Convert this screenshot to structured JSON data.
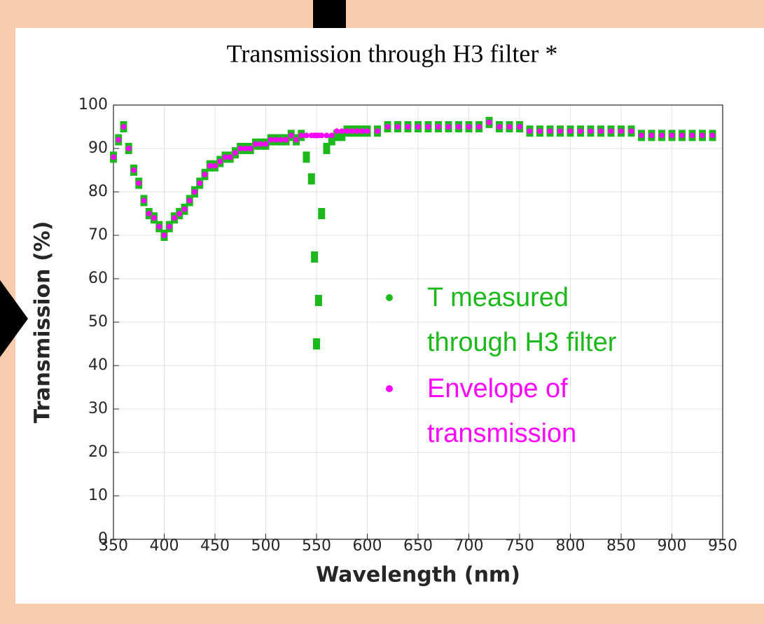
{
  "chart_data": {
    "type": "scatter",
    "title": "Transmission through H3 filter *",
    "x_label": "Wavelength (nm)",
    "y_label": "Transmission (%)",
    "x": [
      350,
      355,
      360,
      365,
      370,
      375,
      380,
      385,
      390,
      395,
      400,
      405,
      410,
      415,
      420,
      425,
      430,
      435,
      440,
      445,
      450,
      455,
      460,
      465,
      470,
      475,
      480,
      485,
      490,
      495,
      500,
      505,
      510,
      515,
      520,
      525,
      530,
      535,
      540,
      545,
      548,
      550,
      552,
      555,
      560,
      565,
      570,
      575,
      580,
      585,
      590,
      595,
      600,
      610,
      620,
      630,
      640,
      650,
      660,
      670,
      680,
      690,
      700,
      710,
      720,
      730,
      740,
      750,
      760,
      770,
      780,
      790,
      800,
      810,
      820,
      830,
      840,
      850,
      860,
      870,
      880,
      890,
      900,
      910,
      920,
      930,
      940
    ],
    "series": [
      {
        "name": "T measured\nthrough H3 filter",
        "color": "#1cb81c",
        "values": [
          88,
          92,
          95,
          90,
          85,
          82,
          78,
          75,
          74,
          72,
          70,
          72,
          74,
          75,
          76,
          78,
          80,
          82,
          84,
          86,
          86,
          87,
          88,
          88,
          89,
          90,
          90,
          90,
          91,
          91,
          91,
          92,
          92,
          92,
          92,
          93,
          92,
          93,
          88,
          83,
          65,
          45,
          55,
          75,
          90,
          92,
          93,
          93,
          94,
          94,
          94,
          94,
          94,
          94,
          95,
          95,
          95,
          95,
          95,
          95,
          95,
          95,
          95,
          95,
          96,
          95,
          95,
          95,
          94,
          94,
          94,
          94,
          94,
          94,
          94,
          94,
          94,
          94,
          94,
          93,
          93,
          93,
          93,
          93,
          93,
          93,
          93
        ]
      },
      {
        "name": "Envelope of\ntransmission",
        "color": "#ff00ff",
        "values": [
          88,
          92,
          95,
          90,
          85,
          82,
          78,
          75,
          74,
          72,
          70,
          72,
          74,
          75,
          76,
          78,
          80,
          82,
          84,
          86,
          86,
          87,
          88,
          88,
          89,
          90,
          90,
          90,
          91,
          91,
          91,
          92,
          92,
          92,
          92,
          93,
          92,
          93,
          93,
          93,
          93,
          93,
          93,
          93,
          93,
          93,
          94,
          94,
          94,
          94,
          94,
          94,
          94,
          94,
          95,
          95,
          95,
          95,
          95,
          95,
          95,
          95,
          95,
          95,
          96,
          95,
          95,
          95,
          94,
          94,
          94,
          94,
          94,
          94,
          94,
          94,
          94,
          94,
          94,
          93,
          93,
          93,
          93,
          93,
          93,
          93,
          93
        ]
      }
    ],
    "xlim": [
      350,
      950
    ],
    "ylim": [
      0,
      100
    ],
    "xticks": [
      350,
      400,
      450,
      500,
      550,
      600,
      650,
      700,
      750,
      800,
      850,
      900,
      950
    ],
    "yticks": [
      0,
      10,
      20,
      30,
      40,
      50,
      60,
      70,
      80,
      90,
      100
    ],
    "grid": true
  }
}
